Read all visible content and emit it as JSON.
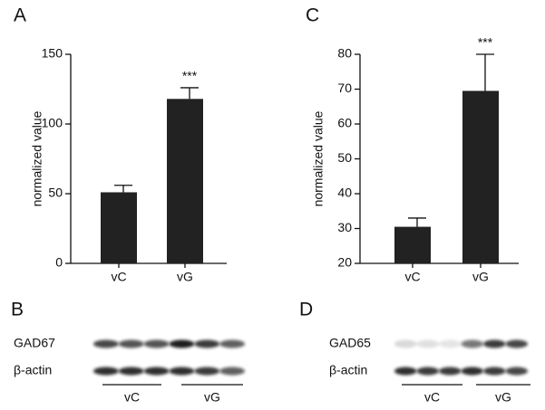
{
  "chart_data": [
    {
      "type": "bar",
      "panel": "A",
      "ylabel": "normalized value",
      "categories": [
        "vC",
        "vG"
      ],
      "values": [
        51,
        118
      ],
      "errors": [
        5,
        8
      ],
      "annotations": [
        null,
        "***"
      ],
      "color": "#222222",
      "ylim": [
        0,
        150
      ],
      "yticks": [
        0,
        50,
        100,
        150
      ]
    },
    {
      "type": "bar",
      "panel": "C",
      "ylabel": "normalized value",
      "categories": [
        "vC",
        "vG"
      ],
      "values": [
        30.5,
        69.5
      ],
      "errors": [
        2.5,
        10.5
      ],
      "annotations": [
        null,
        "***"
      ],
      "color": "#222222",
      "ylim": [
        20,
        80
      ],
      "yticks": [
        20,
        30,
        40,
        50,
        60,
        70,
        80
      ]
    }
  ],
  "blots": [
    {
      "panel": "B",
      "rows": [
        "GAD67",
        "β-actin"
      ],
      "groups": [
        "vC",
        "vG"
      ]
    },
    {
      "panel": "D",
      "rows": [
        "GAD65",
        "β-actin"
      ],
      "groups": [
        "vC",
        "vG"
      ]
    }
  ]
}
